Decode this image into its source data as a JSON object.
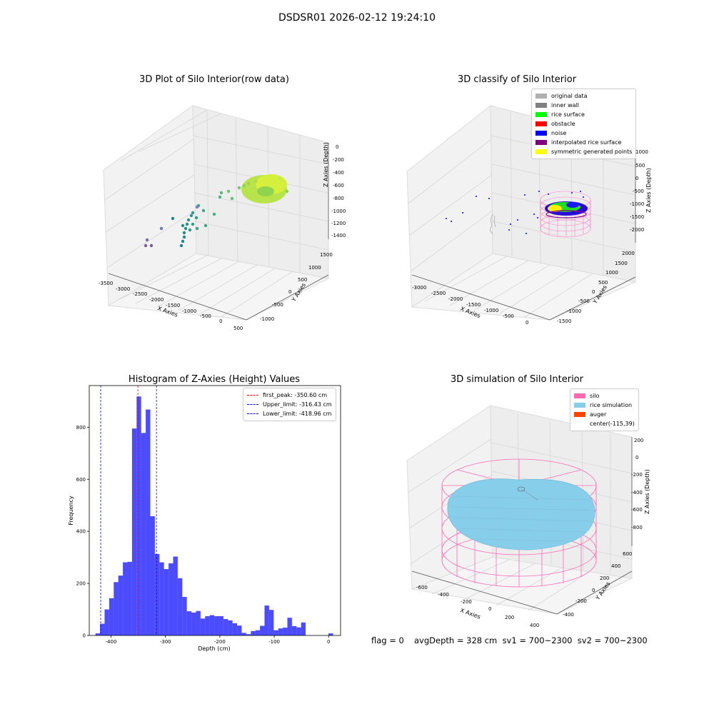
{
  "suptitle": "DSDSR01 2026-02-12 19:24:10",
  "panels": {
    "raw": {
      "title": "3D Plot of Silo Interior(row data)",
      "xlabel": "X Axies",
      "ylabel": "Y Axies",
      "zlabel": "Z Axies (Depth)",
      "xticks": [
        "-3500",
        "-3000",
        "-2500",
        "-2000",
        "-1500",
        "-1000",
        "-500",
        "0",
        "500"
      ],
      "yticks": [
        "-1000",
        "-500",
        "0",
        "500",
        "1000",
        "1500"
      ],
      "zticks": [
        "0",
        "-200",
        "-400",
        "-600",
        "-800",
        "-1000",
        "-1200",
        "-1400"
      ]
    },
    "classify": {
      "title": "3D classify of Silo Interior",
      "xlabel": "X Axies",
      "ylabel": "Y Axies",
      "zlabel": "Z Axies (Depth)",
      "xticks": [
        "-3000",
        "-2500",
        "-2000",
        "-1500",
        "-1000",
        "-500",
        "0"
      ],
      "yticks": [
        "-1500",
        "-1000",
        "-500",
        "0",
        "500",
        "1000",
        "1500",
        "2000"
      ],
      "zticks": [
        "1000",
        "500",
        "0",
        "-500",
        "-1000",
        "-1500",
        "-2000"
      ],
      "legend": [
        {
          "label": "original data",
          "color": "#b0b0b0"
        },
        {
          "label": "inner wall",
          "color": "#808080"
        },
        {
          "label": "rice surface",
          "color": "#00ff00"
        },
        {
          "label": "obstacle",
          "color": "#ff0000"
        },
        {
          "label": "noise",
          "color": "#0000ff"
        },
        {
          "label": "interpolated rice surface",
          "color": "#800080"
        },
        {
          "label": "symmetric generated points",
          "color": "#ffff00"
        }
      ]
    },
    "simulation": {
      "title": "3D simulation of Silo Interior",
      "xlabel": "X Axies",
      "ylabel": "Y Axies",
      "zlabel": "Z Axies (Depth)",
      "xticks": [
        "-600",
        "-400",
        "-200",
        "0",
        "200",
        "400"
      ],
      "yticks": [
        "-400",
        "-200",
        "0",
        "200",
        "400",
        "600"
      ],
      "zticks": [
        "200",
        "0",
        "-200",
        "-400",
        "-600",
        "-800"
      ],
      "legend": [
        {
          "label": "silo",
          "color": "#ff69b4"
        },
        {
          "label": "rice simulation",
          "color": "#87ceeb"
        },
        {
          "label": "auger",
          "color": "#ff4500"
        },
        {
          "label": "center(-115,39)",
          "color": ""
        }
      ]
    }
  },
  "footer": {
    "flag": "flag = 0",
    "stats": "avgDepth = 328 cm  sv1 = 700~2300  sv2 = 700~2300"
  },
  "chart_data": {
    "type": "bar",
    "title": "Histogram of Z-Axies (Height) Values",
    "xlabel": "Depth (cm)",
    "ylabel": "Frequency",
    "xlim": [
      -440,
      22
    ],
    "ylim": [
      0,
      960
    ],
    "xticks": [
      -400,
      -300,
      -200,
      -100,
      0
    ],
    "yticks": [
      0,
      200,
      400,
      600,
      800
    ],
    "bin_width": 8.4,
    "color": "#0000ff",
    "bins": [
      {
        "x": -428.6,
        "y": 8
      },
      {
        "x": -420.2,
        "y": 45
      },
      {
        "x": -411.8,
        "y": 100
      },
      {
        "x": -403.4,
        "y": 143
      },
      {
        "x": -395.0,
        "y": 205
      },
      {
        "x": -386.6,
        "y": 230
      },
      {
        "x": -378.2,
        "y": 281
      },
      {
        "x": -369.8,
        "y": 283
      },
      {
        "x": -361.4,
        "y": 795
      },
      {
        "x": -353.0,
        "y": 918
      },
      {
        "x": -344.6,
        "y": 778
      },
      {
        "x": -336.2,
        "y": 868
      },
      {
        "x": -327.8,
        "y": 458
      },
      {
        "x": -319.4,
        "y": 313
      },
      {
        "x": -311.0,
        "y": 281
      },
      {
        "x": -302.6,
        "y": 255
      },
      {
        "x": -294.2,
        "y": 277
      },
      {
        "x": -285.8,
        "y": 303
      },
      {
        "x": -277.4,
        "y": 220
      },
      {
        "x": -269.0,
        "y": 148
      },
      {
        "x": -260.6,
        "y": 93
      },
      {
        "x": -252.2,
        "y": 88
      },
      {
        "x": -243.8,
        "y": 94
      },
      {
        "x": -235.4,
        "y": 65
      },
      {
        "x": -227.0,
        "y": 74
      },
      {
        "x": -218.6,
        "y": 78
      },
      {
        "x": -210.2,
        "y": 74
      },
      {
        "x": -201.8,
        "y": 74
      },
      {
        "x": -193.4,
        "y": 63
      },
      {
        "x": -185.0,
        "y": 58
      },
      {
        "x": -176.6,
        "y": 47
      },
      {
        "x": -168.2,
        "y": 38
      },
      {
        "x": -159.8,
        "y": 10
      },
      {
        "x": -151.4,
        "y": 5
      },
      {
        "x": -143.0,
        "y": 17
      },
      {
        "x": -134.6,
        "y": 20
      },
      {
        "x": -126.2,
        "y": 37
      },
      {
        "x": -117.8,
        "y": 115
      },
      {
        "x": -109.4,
        "y": 98
      },
      {
        "x": -101.0,
        "y": 20
      },
      {
        "x": -92.6,
        "y": 27
      },
      {
        "x": -84.2,
        "y": 30
      },
      {
        "x": -75.8,
        "y": 68
      },
      {
        "x": -67.4,
        "y": 36
      },
      {
        "x": -59.0,
        "y": 31
      },
      {
        "x": -50.6,
        "y": 50
      },
      {
        "x": -42.2,
        "y": 0
      },
      {
        "x": -33.8,
        "y": 0
      },
      {
        "x": -25.4,
        "y": 0
      },
      {
        "x": -17.0,
        "y": 0
      },
      {
        "x": -8.6,
        "y": 0
      },
      {
        "x": -0.2,
        "y": 8
      }
    ],
    "vlines": [
      {
        "label": "first_peak: -350.60 cm",
        "x": -350.6,
        "color": "#ff0000"
      },
      {
        "label": "Upper_limit: -316.43 cm",
        "x": -316.43,
        "color": "#0000ff"
      },
      {
        "label": "Lower_limit: -418.96 cm",
        "x": -418.96,
        "color": "#0000ff"
      }
    ],
    "legend_position": "top-right"
  }
}
